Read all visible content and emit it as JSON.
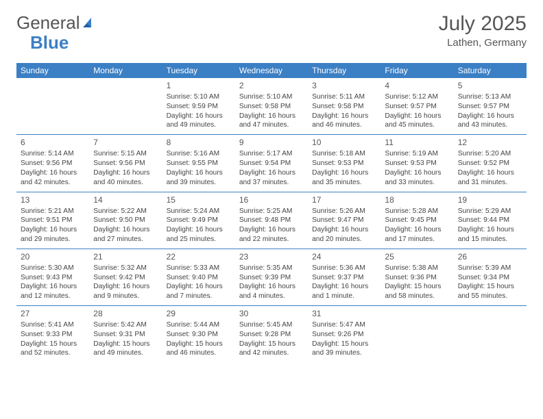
{
  "branding": {
    "part1": "General",
    "part2": "Blue"
  },
  "header": {
    "title": "July 2025",
    "location": "Lathen, Germany"
  },
  "style": {
    "accent": "#3b7fc4",
    "text": "#444444",
    "heading": "#555555",
    "background": "#ffffff",
    "font_family": "Arial",
    "header_fontsize_pt": 22,
    "cell_fontsize_pt": 8,
    "daynum_fontsize_pt": 9,
    "row_border_color": "#3b7fc4",
    "column_count": 7
  },
  "weekdays": [
    "Sunday",
    "Monday",
    "Tuesday",
    "Wednesday",
    "Thursday",
    "Friday",
    "Saturday"
  ],
  "cells": [
    null,
    null,
    {
      "d": "1",
      "sr": "5:10 AM",
      "ss": "9:59 PM",
      "dl": "16 hours and 49 minutes."
    },
    {
      "d": "2",
      "sr": "5:10 AM",
      "ss": "9:58 PM",
      "dl": "16 hours and 47 minutes."
    },
    {
      "d": "3",
      "sr": "5:11 AM",
      "ss": "9:58 PM",
      "dl": "16 hours and 46 minutes."
    },
    {
      "d": "4",
      "sr": "5:12 AM",
      "ss": "9:57 PM",
      "dl": "16 hours and 45 minutes."
    },
    {
      "d": "5",
      "sr": "5:13 AM",
      "ss": "9:57 PM",
      "dl": "16 hours and 43 minutes."
    },
    {
      "d": "6",
      "sr": "5:14 AM",
      "ss": "9:56 PM",
      "dl": "16 hours and 42 minutes."
    },
    {
      "d": "7",
      "sr": "5:15 AM",
      "ss": "9:56 PM",
      "dl": "16 hours and 40 minutes."
    },
    {
      "d": "8",
      "sr": "5:16 AM",
      "ss": "9:55 PM",
      "dl": "16 hours and 39 minutes."
    },
    {
      "d": "9",
      "sr": "5:17 AM",
      "ss": "9:54 PM",
      "dl": "16 hours and 37 minutes."
    },
    {
      "d": "10",
      "sr": "5:18 AM",
      "ss": "9:53 PM",
      "dl": "16 hours and 35 minutes."
    },
    {
      "d": "11",
      "sr": "5:19 AM",
      "ss": "9:53 PM",
      "dl": "16 hours and 33 minutes."
    },
    {
      "d": "12",
      "sr": "5:20 AM",
      "ss": "9:52 PM",
      "dl": "16 hours and 31 minutes."
    },
    {
      "d": "13",
      "sr": "5:21 AM",
      "ss": "9:51 PM",
      "dl": "16 hours and 29 minutes."
    },
    {
      "d": "14",
      "sr": "5:22 AM",
      "ss": "9:50 PM",
      "dl": "16 hours and 27 minutes."
    },
    {
      "d": "15",
      "sr": "5:24 AM",
      "ss": "9:49 PM",
      "dl": "16 hours and 25 minutes."
    },
    {
      "d": "16",
      "sr": "5:25 AM",
      "ss": "9:48 PM",
      "dl": "16 hours and 22 minutes."
    },
    {
      "d": "17",
      "sr": "5:26 AM",
      "ss": "9:47 PM",
      "dl": "16 hours and 20 minutes."
    },
    {
      "d": "18",
      "sr": "5:28 AM",
      "ss": "9:45 PM",
      "dl": "16 hours and 17 minutes."
    },
    {
      "d": "19",
      "sr": "5:29 AM",
      "ss": "9:44 PM",
      "dl": "16 hours and 15 minutes."
    },
    {
      "d": "20",
      "sr": "5:30 AM",
      "ss": "9:43 PM",
      "dl": "16 hours and 12 minutes."
    },
    {
      "d": "21",
      "sr": "5:32 AM",
      "ss": "9:42 PM",
      "dl": "16 hours and 9 minutes."
    },
    {
      "d": "22",
      "sr": "5:33 AM",
      "ss": "9:40 PM",
      "dl": "16 hours and 7 minutes."
    },
    {
      "d": "23",
      "sr": "5:35 AM",
      "ss": "9:39 PM",
      "dl": "16 hours and 4 minutes."
    },
    {
      "d": "24",
      "sr": "5:36 AM",
      "ss": "9:37 PM",
      "dl": "16 hours and 1 minute."
    },
    {
      "d": "25",
      "sr": "5:38 AM",
      "ss": "9:36 PM",
      "dl": "15 hours and 58 minutes."
    },
    {
      "d": "26",
      "sr": "5:39 AM",
      "ss": "9:34 PM",
      "dl": "15 hours and 55 minutes."
    },
    {
      "d": "27",
      "sr": "5:41 AM",
      "ss": "9:33 PM",
      "dl": "15 hours and 52 minutes."
    },
    {
      "d": "28",
      "sr": "5:42 AM",
      "ss": "9:31 PM",
      "dl": "15 hours and 49 minutes."
    },
    {
      "d": "29",
      "sr": "5:44 AM",
      "ss": "9:30 PM",
      "dl": "15 hours and 46 minutes."
    },
    {
      "d": "30",
      "sr": "5:45 AM",
      "ss": "9:28 PM",
      "dl": "15 hours and 42 minutes."
    },
    {
      "d": "31",
      "sr": "5:47 AM",
      "ss": "9:26 PM",
      "dl": "15 hours and 39 minutes."
    },
    null,
    null
  ],
  "labels": {
    "sunrise": "Sunrise: ",
    "sunset": "Sunset: ",
    "daylight": "Daylight: "
  }
}
